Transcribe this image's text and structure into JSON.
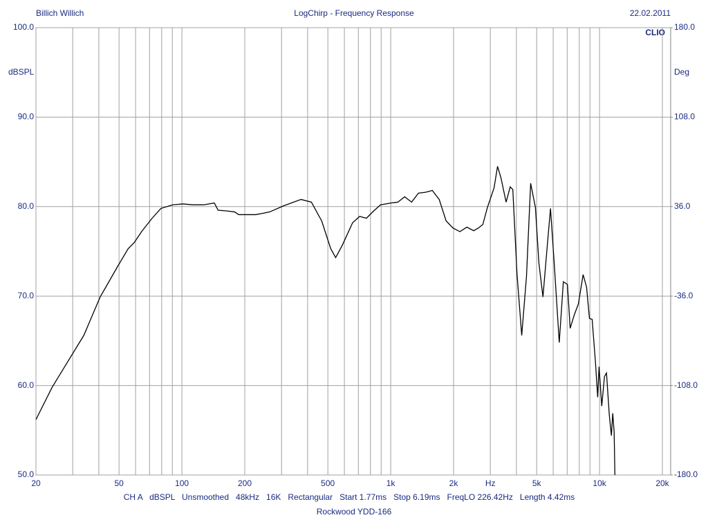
{
  "chart_data": {
    "type": "line",
    "title": "LogChirp - Frequency Response",
    "author": "Billich Willich",
    "date": "22.02.2011",
    "brand": "CLIO",
    "ylabel": "dBSPL",
    "y2label": "Deg",
    "footer": "CH A   dBSPL   Unsmoothed   48kHz   16K   Rectangular   Start 1.77ms   Stop 6.19ms   FreqLO 226.42Hz   Length 4.42ms",
    "subtitle": "Rockwood YDD-166",
    "xscale": "log",
    "xlim": [
      20,
      20000
    ],
    "xticks": [
      20,
      50,
      100,
      200,
      500,
      {
        "value": 1000,
        "label": "1k"
      },
      {
        "value": 2000,
        "label": "2k"
      },
      {
        "value": 3000,
        "label": "Hz"
      },
      {
        "value": 5000,
        "label": "5k"
      },
      {
        "value": 10000,
        "label": "10k"
      },
      {
        "value": 20000,
        "label": "20k"
      }
    ],
    "xminor_ticks": [
      30,
      40,
      60,
      70,
      80,
      90,
      300,
      400,
      600,
      700,
      800,
      900,
      4000,
      6000,
      7000,
      8000,
      9000
    ],
    "ylim": [
      50,
      100
    ],
    "yticks": [
      {
        "value": 100,
        "label": "100.0"
      },
      {
        "value": 90,
        "label": "90.0"
      },
      {
        "value": 80,
        "label": "80.0"
      },
      {
        "value": 70,
        "label": "70.0"
      },
      {
        "value": 60,
        "label": "60.0"
      },
      {
        "value": 50,
        "label": "50.0"
      }
    ],
    "y2lim": [
      -180,
      180
    ],
    "y2ticks": [
      {
        "value": 180,
        "label": "180.0"
      },
      {
        "value": 108,
        "label": "108.0"
      },
      {
        "value": 36,
        "label": "36.0"
      },
      {
        "value": -36,
        "label": "-36.0"
      },
      {
        "value": -108,
        "label": "-108.0"
      },
      {
        "value": -180,
        "label": "-180.0"
      }
    ],
    "grid": true,
    "x": [
      20,
      23.9,
      28.8,
      33.9,
      40.6,
      49.2,
      55.3,
      59.2,
      64.1,
      72,
      79.4,
      90.4,
      101,
      113,
      127,
      143,
      149,
      166,
      179,
      187,
      226,
      263,
      308,
      372,
      417,
      467,
      516,
      545,
      587,
      657,
      710,
      765,
      828,
      894,
      1003,
      1082,
      1166,
      1259,
      1358,
      1466,
      1582,
      1707,
      1842,
      1988,
      2145,
      2315,
      2498,
      2627,
      2762,
      2905,
      3127,
      3248,
      3374,
      3570,
      3735,
      3844,
      4023,
      4241,
      4470,
      4680,
      4932,
      5125,
      5360,
      5606,
      5825,
      6094,
      6415,
      6711,
      7020,
      7236,
      7570,
      7918,
      8346,
      8669,
      8950,
      9220,
      9570,
      9800,
      9950,
      10250,
      10560,
      10800,
      11140,
      11400,
      11570,
      11750,
      11850
    ],
    "series": [
      {
        "name": "CH A",
        "color": "#000000",
        "values": [
          56.2,
          59.8,
          62.9,
          65.6,
          69.9,
          73.3,
          75.3,
          76.0,
          77.2,
          78.7,
          79.8,
          80.2,
          80.3,
          80.2,
          80.2,
          80.4,
          79.6,
          79.5,
          79.4,
          79.1,
          79.1,
          79.4,
          80.1,
          80.8,
          80.5,
          78.4,
          75.3,
          74.3,
          75.7,
          78.2,
          78.9,
          78.7,
          79.5,
          80.2,
          80.4,
          80.5,
          81.1,
          80.5,
          81.5,
          81.6,
          81.8,
          80.8,
          78.4,
          77.6,
          77.2,
          77.7,
          77.3,
          77.6,
          78.0,
          79.9,
          82.1,
          84.5,
          83.2,
          80.5,
          82.2,
          81.9,
          72.6,
          65.6,
          72.2,
          82.6,
          79.9,
          73.7,
          69.9,
          75.3,
          79.8,
          73.0,
          64.8,
          71.6,
          71.3,
          66.4,
          67.9,
          69.1,
          72.4,
          71.0,
          67.5,
          67.4,
          62.5,
          58.7,
          62.1,
          57.7,
          61.0,
          61.4,
          56.7,
          54.4,
          56.9,
          54.8,
          50.0
        ]
      }
    ]
  }
}
